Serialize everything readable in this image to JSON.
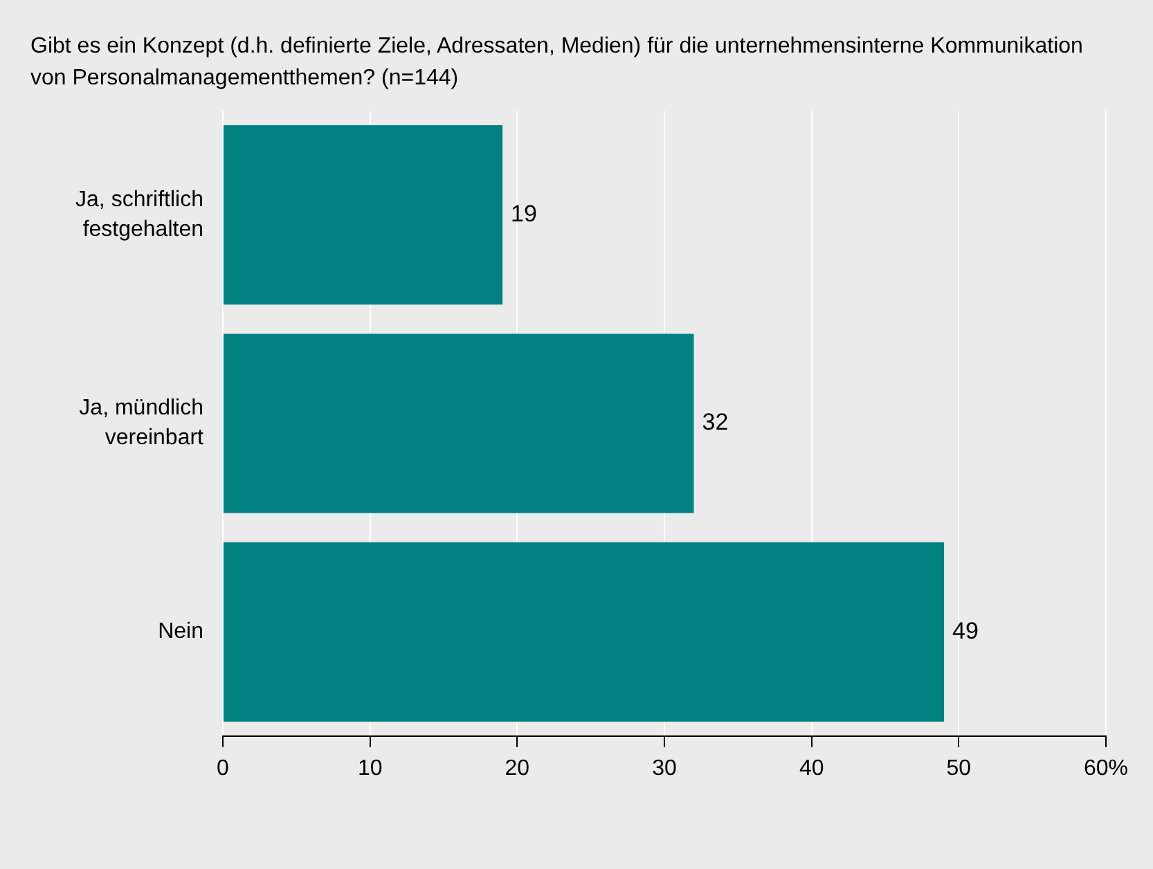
{
  "chart_data": {
    "type": "bar",
    "orientation": "horizontal",
    "title": "Gibt es ein Konzept (d.h. definierte Ziele, Adressaten, Medien) für die unternehmensinterne Kommunikation von Personalmanagementthemen? (n=144)",
    "categories": [
      "Ja, schriftlich festgehalten",
      "Ja, mündlich vereinbart",
      "Nein"
    ],
    "values": [
      19,
      32,
      49
    ],
    "color": "#008080",
    "xlim": [
      0,
      60
    ],
    "xticks": [
      0,
      10,
      20,
      30,
      40,
      50,
      {
        "value": 60,
        "label": "60%"
      }
    ],
    "grid": "x",
    "data_labels": true,
    "legend": false
  }
}
